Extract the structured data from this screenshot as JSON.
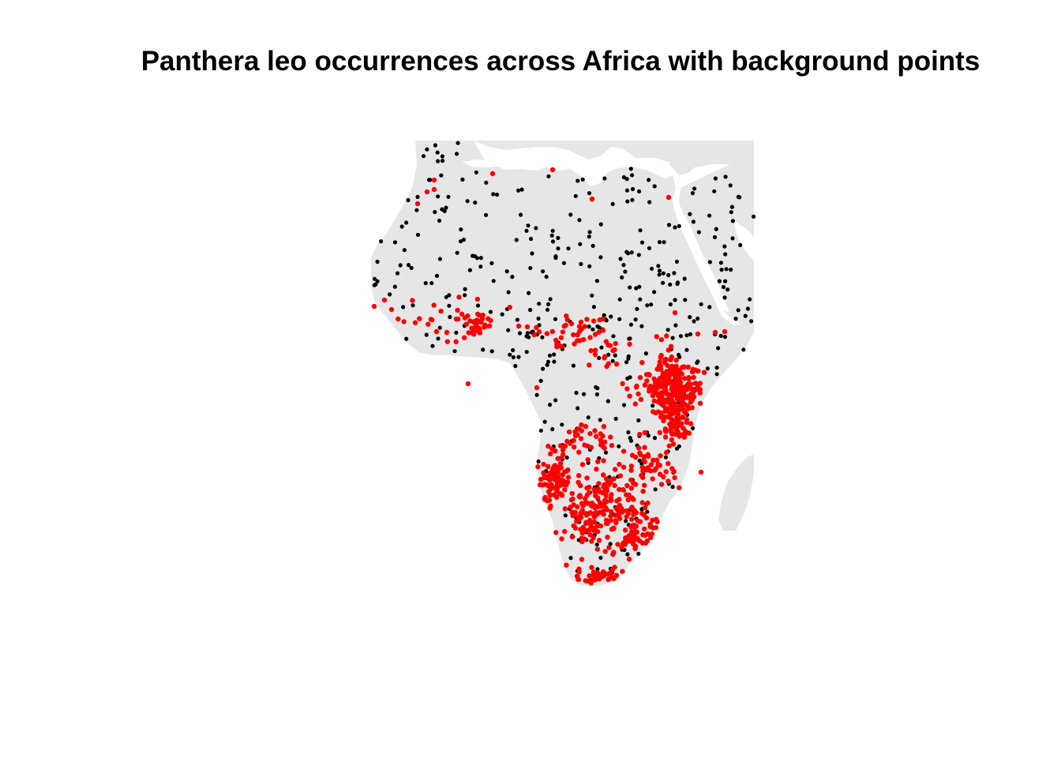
{
  "title": "Panthera leo occurrences across Africa with background points",
  "colors": {
    "background": "#ffffff",
    "land": "#e6e6e6",
    "background_points": "#000000",
    "occurrence_points": "#ff0000"
  },
  "legend": "none",
  "point_counts": {
    "background_points": 420,
    "occurrence_points": 900
  }
}
